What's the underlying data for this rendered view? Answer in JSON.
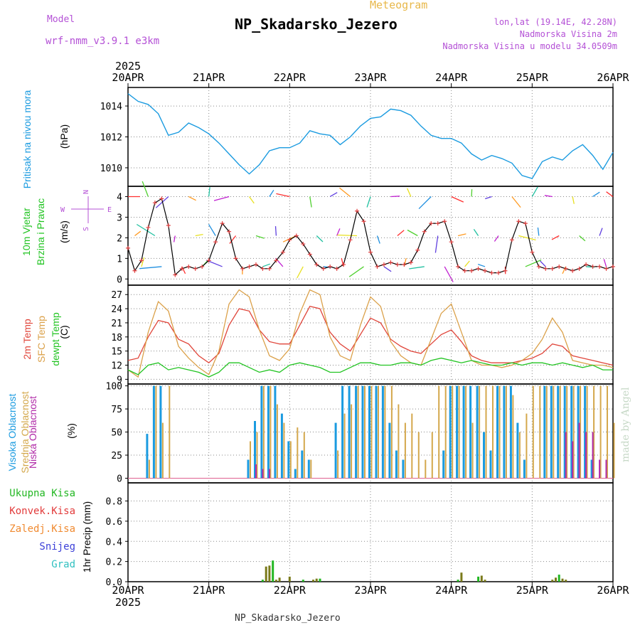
{
  "header": {
    "model_label": "Model",
    "model_name": "wrf-nmm_v3.9.1 e3km",
    "title": "NP_Skadarsko_Jezero",
    "subtitle": "Meteogram",
    "coords": "lon,lat (19.14E, 42.28N)",
    "altitude": "Nadmorska Visina 2m",
    "model_altitude": "Nadmorska Visina u modelu 34.0509m"
  },
  "footer": {
    "station": "NP_Skadarsko_Jezero"
  },
  "watermark": "made by Angel",
  "panels": {
    "pressure": {
      "label": "Pritisak na nivou mora",
      "unit": "(hPa)"
    },
    "wind": {
      "label1": "10m Vjetar",
      "label2": "Brzina i Pravac",
      "unit": "(m/s)",
      "compass": {
        "n": "N",
        "s": "S",
        "e": "E",
        "w": "W"
      }
    },
    "temp": {
      "label1": "2m Temp",
      "label2": "SFC Temp",
      "label3": "dewpt Temp",
      "unit": "(C)"
    },
    "cloud": {
      "label1": "Visoka Oblacnost",
      "label2": "Srednja Oblacnost",
      "label3": "Niska Oblacnost",
      "unit": "(%)"
    },
    "precip": {
      "unit": "1hr Precip (mm)",
      "legend": [
        "Ukupna Kisa",
        "Konvek.Kisa",
        "Zaledj.Kisa",
        "Snijeg",
        "Grad"
      ]
    }
  },
  "colors": {
    "pressure": "#1b9be0",
    "wind_speed": "#000000",
    "wind_marker": "#e03c3c",
    "temp_2m": "#e0453a",
    "temp_sfc": "#dba14a",
    "temp_dew": "#22c422",
    "cloud_high": "#1b9be0",
    "cloud_mid": "#d4a84c",
    "cloud_low": "#b02aa8",
    "rain_total": "#22b722",
    "rain_conv": "#e23a3a",
    "rain_frz": "#f08a30",
    "snow": "#3c40d8",
    "hail": "#30c0c0",
    "label_pressure": "#1b9be0",
    "label_wind": "#22c422",
    "label_purple": "#b451d6"
  },
  "chart_data": [
    {
      "type": "line",
      "title": "Pritisak na nivou mora",
      "ylabel": "(hPa)",
      "x": [
        0,
        3,
        6,
        9,
        12,
        15,
        18,
        21,
        24,
        27,
        30,
        33,
        36,
        39,
        42,
        45,
        48,
        51,
        54,
        57,
        60,
        63,
        66,
        69,
        72,
        75,
        78,
        81,
        84,
        87,
        90,
        93,
        96,
        99,
        102,
        105,
        108,
        111,
        114,
        117,
        120,
        123,
        126,
        129,
        132,
        135,
        138,
        141,
        144
      ],
      "x_ticks": [
        "20APR",
        "21APR",
        "22APR",
        "23APR",
        "24APR",
        "25APR",
        "26APR"
      ],
      "top_year": "2025",
      "yticks": [
        1010,
        1012,
        1014
      ],
      "ylim": [
        1008.8,
        1015.2
      ],
      "values": [
        1014.8,
        1014.3,
        1014.1,
        1013.5,
        1012.1,
        1012.3,
        1012.9,
        1012.6,
        1012.2,
        1011.6,
        1010.9,
        1010.2,
        1009.6,
        1010.2,
        1011.1,
        1011.3,
        1011.3,
        1011.6,
        1012.4,
        1012.2,
        1012.1,
        1011.5,
        1012.0,
        1012.7,
        1013.2,
        1013.3,
        1013.8,
        1013.7,
        1013.4,
        1012.7,
        1012.1,
        1011.9,
        1011.9,
        1011.6,
        1010.9,
        1010.5,
        1010.8,
        1010.6,
        1010.3,
        1009.5,
        1009.3,
        1010.4,
        1010.7,
        1010.5,
        1011.1,
        1011.5,
        1010.8,
        1009.9,
        1011.0
      ]
    },
    {
      "type": "line",
      "title": "10m Vjetar Brzina i Pravac",
      "ylabel": "(m/s)",
      "x_ticks": [
        "20APR",
        "21APR",
        "22APR",
        "23APR",
        "24APR",
        "25APR",
        "26APR"
      ],
      "yticks": [
        0,
        1,
        2,
        3,
        4
      ],
      "ylim": [
        -0.3,
        4.5
      ],
      "x": [
        0,
        2,
        4,
        6,
        8,
        10,
        12,
        14,
        16,
        18,
        20,
        22,
        24,
        26,
        28,
        30,
        32,
        34,
        36,
        38,
        40,
        42,
        44,
        46,
        48,
        50,
        52,
        54,
        56,
        58,
        60,
        62,
        64,
        66,
        68,
        70,
        72,
        74,
        76,
        78,
        80,
        82,
        84,
        86,
        88,
        90,
        92,
        94,
        96,
        98,
        100,
        102,
        104,
        106,
        108,
        110,
        112,
        114,
        116,
        118,
        120,
        122,
        124,
        126,
        128,
        130,
        132,
        134,
        136,
        138,
        140,
        142,
        144
      ],
      "speed": [
        1.5,
        0.4,
        0.9,
        2.5,
        3.7,
        3.9,
        2.6,
        0.2,
        0.5,
        0.6,
        0.5,
        0.6,
        0.9,
        1.8,
        2.7,
        2.3,
        1.0,
        0.5,
        0.6,
        0.7,
        0.5,
        0.5,
        0.9,
        1.3,
        1.9,
        2.1,
        1.7,
        1.2,
        0.7,
        0.5,
        0.6,
        0.5,
        0.7,
        1.9,
        3.3,
        2.8,
        1.3,
        0.6,
        0.7,
        0.8,
        0.7,
        0.7,
        0.8,
        1.4,
        2.3,
        2.7,
        2.7,
        2.8,
        1.8,
        0.6,
        0.4,
        0.4,
        0.5,
        0.4,
        0.3,
        0.3,
        0.4,
        1.9,
        2.8,
        2.7,
        1.3,
        0.6,
        0.5,
        0.5,
        0.6,
        0.5,
        0.4,
        0.5,
        0.7,
        0.6,
        0.6,
        0.5,
        0.6
      ],
      "compass": [
        "N",
        "S",
        "E",
        "W"
      ]
    },
    {
      "type": "line",
      "title": "Temperature",
      "ylabel": "(C)",
      "x_ticks": [
        "20APR",
        "21APR",
        "22APR",
        "23APR",
        "24APR",
        "25APR",
        "26APR"
      ],
      "yticks": [
        9,
        12,
        15,
        18,
        21,
        24,
        27
      ],
      "ylim": [
        8,
        29
      ],
      "x": [
        0,
        3,
        6,
        9,
        12,
        15,
        18,
        21,
        24,
        27,
        30,
        33,
        36,
        39,
        42,
        45,
        48,
        51,
        54,
        57,
        60,
        63,
        66,
        69,
        72,
        75,
        78,
        81,
        84,
        87,
        90,
        93,
        96,
        99,
        102,
        105,
        108,
        111,
        114,
        117,
        120,
        123,
        126,
        129,
        132,
        135,
        138,
        141,
        144
      ],
      "series": [
        {
          "name": "2m Temp",
          "values": [
            13.0,
            13.5,
            18.0,
            21.5,
            21.0,
            17.5,
            16.5,
            14.0,
            12.5,
            14.5,
            20.5,
            24.0,
            23.5,
            19.5,
            17.0,
            16.5,
            16.5,
            20.5,
            24.5,
            24.0,
            19.0,
            16.5,
            15.0,
            18.5,
            22.0,
            21.0,
            17.5,
            16.0,
            15.0,
            14.5,
            16.5,
            18.5,
            19.5,
            17.0,
            14.0,
            13.0,
            12.5,
            12.5,
            12.5,
            13.0,
            13.5,
            14.5,
            16.5,
            16.0,
            14.0,
            13.5,
            13.0,
            12.5,
            12.0
          ]
        },
        {
          "name": "SFC Temp",
          "values": [
            11.0,
            9.5,
            19.0,
            25.5,
            23.5,
            16.0,
            13.5,
            11.5,
            10.0,
            15.0,
            25.0,
            28.0,
            26.5,
            19.5,
            14.0,
            13.0,
            15.5,
            23.0,
            28.0,
            27.0,
            18.0,
            14.0,
            13.0,
            20.5,
            26.5,
            24.5,
            17.0,
            14.0,
            12.5,
            12.0,
            17.5,
            23.0,
            25.0,
            19.0,
            13.0,
            12.0,
            12.0,
            11.5,
            12.0,
            13.0,
            14.5,
            17.5,
            22.0,
            19.0,
            13.0,
            12.5,
            12.0,
            12.0,
            11.5
          ]
        },
        {
          "name": "dewpt Temp",
          "values": [
            11.0,
            10.0,
            12.0,
            12.5,
            11.0,
            11.5,
            11.0,
            10.5,
            9.5,
            10.5,
            12.5,
            12.5,
            11.5,
            10.5,
            11.0,
            10.5,
            12.0,
            12.5,
            12.0,
            11.5,
            10.5,
            10.5,
            11.5,
            12.5,
            12.5,
            12.0,
            12.0,
            12.5,
            12.5,
            12.0,
            13.0,
            13.5,
            13.0,
            12.5,
            13.0,
            12.5,
            12.0,
            12.0,
            12.5,
            12.0,
            12.5,
            12.5,
            12.0,
            12.5,
            12.0,
            11.5,
            12.0,
            11.0,
            11.0
          ]
        }
      ]
    },
    {
      "type": "bar",
      "title": "Oblacnost",
      "ylabel": "(%)",
      "x_ticks": [
        "20APR",
        "21APR",
        "22APR",
        "23APR",
        "24APR",
        "25APR",
        "26APR"
      ],
      "yticks": [
        0,
        25,
        50,
        75,
        100
      ],
      "ylim": [
        -5,
        102
      ],
      "x_hours": [
        0,
        2,
        4,
        6,
        8,
        10,
        12,
        14,
        16,
        18,
        20,
        22,
        24,
        26,
        28,
        30,
        32,
        34,
        36,
        38,
        40,
        42,
        44,
        46,
        48,
        50,
        52,
        54,
        56,
        58,
        60,
        62,
        64,
        66,
        68,
        70,
        72,
        74,
        76,
        78,
        80,
        82,
        84,
        86,
        88,
        90,
        92,
        94,
        96,
        98,
        100,
        102,
        104,
        106,
        108,
        110,
        112,
        114,
        116,
        118,
        120,
        122,
        124,
        126,
        128,
        130,
        132,
        134,
        136,
        138,
        140,
        142,
        144
      ],
      "series": [
        {
          "name": "Visoka Oblacnost",
          "values": [
            0,
            0,
            0,
            48,
            100,
            100,
            0,
            0,
            0,
            0,
            0,
            0,
            0,
            0,
            0,
            0,
            0,
            0,
            20,
            62,
            100,
            100,
            100,
            70,
            40,
            10,
            30,
            20,
            0,
            0,
            0,
            60,
            100,
            100,
            100,
            100,
            100,
            100,
            100,
            60,
            30,
            20,
            0,
            0,
            0,
            0,
            0,
            30,
            100,
            100,
            100,
            100,
            100,
            50,
            30,
            100,
            100,
            100,
            60,
            20,
            0,
            0,
            100,
            100,
            100,
            100,
            100,
            100,
            100,
            20,
            0,
            0,
            0
          ]
        },
        {
          "name": "Srednja Oblacnost",
          "values": [
            0,
            0,
            0,
            20,
            100,
            60,
            100,
            0,
            0,
            0,
            0,
            0,
            0,
            0,
            0,
            0,
            0,
            0,
            40,
            50,
            100,
            100,
            80,
            60,
            40,
            55,
            50,
            20,
            0,
            0,
            0,
            30,
            70,
            80,
            100,
            100,
            100,
            100,
            100,
            100,
            80,
            60,
            70,
            50,
            20,
            50,
            100,
            100,
            100,
            100,
            100,
            60,
            100,
            100,
            100,
            100,
            100,
            90,
            50,
            70,
            100,
            100,
            100,
            100,
            100,
            100,
            100,
            100,
            100,
            100,
            100,
            100,
            60
          ]
        },
        {
          "name": "Niska Oblacnost",
          "values": [
            0,
            0,
            0,
            0,
            0,
            0,
            0,
            0,
            0,
            0,
            0,
            0,
            0,
            0,
            0,
            0,
            0,
            0,
            0,
            15,
            10,
            10,
            0,
            0,
            0,
            0,
            0,
            0,
            0,
            0,
            0,
            0,
            0,
            0,
            0,
            0,
            0,
            0,
            0,
            0,
            0,
            0,
            0,
            0,
            0,
            0,
            0,
            0,
            0,
            0,
            0,
            0,
            0,
            0,
            0,
            0,
            0,
            0,
            0,
            0,
            0,
            0,
            0,
            0,
            0,
            50,
            40,
            60,
            50,
            50,
            20,
            20,
            0
          ]
        }
      ]
    },
    {
      "type": "bar",
      "title": "1hr Precip (mm)",
      "ylabel": "1hr Precip (mm)",
      "x_ticks": [
        "20APR",
        "21APR",
        "22APR",
        "23APR",
        "24APR",
        "25APR",
        "26APR"
      ],
      "bottom_year": "2025",
      "yticks": [
        0.0,
        0.2,
        0.4,
        0.6,
        0.8
      ],
      "ylim": [
        0,
        0.98
      ],
      "x_hours": [
        40,
        41,
        42,
        43,
        44,
        45,
        46,
        47,
        48,
        52,
        55,
        56,
        57,
        63,
        64,
        65,
        66,
        67,
        68,
        69,
        70,
        71,
        72,
        73,
        74,
        75,
        76,
        77,
        78,
        79,
        80,
        81,
        82,
        83,
        84,
        85,
        86,
        87,
        88,
        89,
        90,
        91,
        92,
        93,
        94,
        95,
        96,
        97,
        98,
        99,
        100,
        101,
        102,
        103,
        104,
        105,
        106,
        107,
        108,
        109,
        110,
        111,
        112,
        113,
        114,
        115,
        116,
        117,
        118,
        119,
        120,
        121,
        122,
        123,
        124,
        125,
        126,
        127,
        128,
        129,
        130,
        131,
        132,
        133,
        134,
        135,
        136,
        137,
        138,
        139,
        140,
        141,
        142,
        143
      ],
      "series": [
        {
          "name": "Ukupna Kisa",
          "values": [
            0.02,
            0.15,
            0.16,
            0.21,
            0.02,
            0.04,
            0.0,
            0.0,
            0.05,
            0.02,
            0.02,
            0.03,
            0.03,
            0,
            0,
            0,
            0,
            0,
            0,
            0,
            0,
            0,
            0,
            0,
            0,
            0,
            0,
            0,
            0,
            0,
            0,
            0,
            0,
            0,
            0,
            0,
            0,
            0,
            0,
            0,
            0,
            0,
            0,
            0,
            0,
            0,
            0,
            0,
            0.02,
            0.09,
            0,
            0,
            0,
            0,
            0.05,
            0.06,
            0.02,
            0,
            0,
            0,
            0,
            0,
            0,
            0,
            0,
            0,
            0,
            0,
            0,
            0,
            0,
            0,
            0,
            0,
            0,
            0,
            0.02,
            0.04,
            0.07,
            0.03,
            0.02,
            0,
            0,
            0,
            0,
            0,
            0,
            0,
            0,
            0,
            0,
            0,
            0,
            0
          ]
        },
        {
          "name": "Konvek.Kisa",
          "values": []
        },
        {
          "name": "Zaledj.Kisa",
          "values": []
        },
        {
          "name": "Snijeg",
          "values": []
        },
        {
          "name": "Grad",
          "values": []
        }
      ]
    }
  ]
}
